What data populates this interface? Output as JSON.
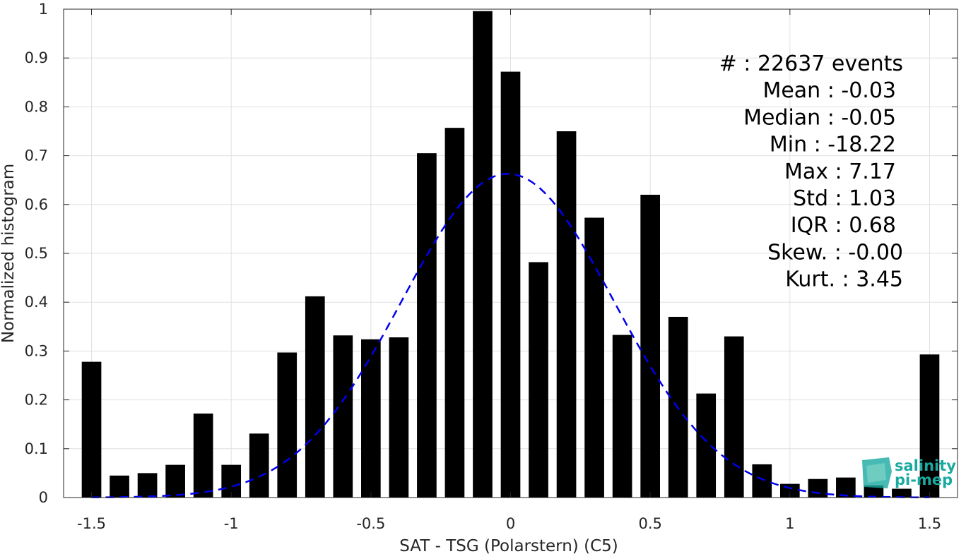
{
  "chart_data": {
    "type": "bar",
    "title": "",
    "xlabel": "SAT - TSG (Polarstern) (C5)",
    "ylabel": "Normalized histogram",
    "xlim": [
      -1.6,
      1.6
    ],
    "ylim": [
      0,
      1
    ],
    "grid": true,
    "x_ticks": [
      -1.5,
      -1,
      -0.5,
      0,
      0.5,
      1,
      1.5
    ],
    "x_tick_labels": [
      "-1.5",
      "-1",
      "-0.5",
      "0",
      "0.5",
      "1",
      "1.5"
    ],
    "y_ticks": [
      0,
      0.1,
      0.2,
      0.3,
      0.4,
      0.5,
      0.6,
      0.7,
      0.8,
      0.9,
      1
    ],
    "y_tick_labels": [
      "0",
      "0.1",
      "0.2",
      "0.3",
      "0.4",
      "0.5",
      "0.6",
      "0.7",
      "0.8",
      "0.9",
      "1"
    ],
    "bar_color": "#000000",
    "x": [
      -1.5,
      -1.4,
      -1.3,
      -1.2,
      -1.1,
      -1.0,
      -0.9,
      -0.8,
      -0.7,
      -0.6,
      -0.5,
      -0.4,
      -0.3,
      -0.2,
      -0.1,
      0.0,
      0.1,
      0.2,
      0.3,
      0.4,
      0.5,
      0.6,
      0.7,
      0.8,
      0.9,
      1.0,
      1.1,
      1.2,
      1.3,
      1.4,
      1.5
    ],
    "values": [
      0.278,
      0.045,
      0.05,
      0.067,
      0.172,
      0.067,
      0.131,
      0.297,
      0.412,
      0.332,
      0.324,
      0.328,
      0.705,
      0.757,
      0.996,
      0.872,
      0.482,
      0.75,
      0.573,
      0.333,
      0.62,
      0.37,
      0.213,
      0.33,
      0.068,
      0.028,
      0.038,
      0.041,
      0.025,
      0.018,
      0.293
    ],
    "fit_curve": {
      "style": "dashed",
      "color": "#0000ee",
      "mean": -0.01,
      "std": 0.38,
      "peak": 0.663,
      "x_range": [
        -1.5,
        1.5
      ]
    },
    "stats": [
      "#  : 22637 events",
      "Mean : -0.03",
      "Median : -0.05",
      "Min : -18.22",
      "Max : 7.17",
      "Std : 1.03",
      "IQR : 0.68",
      "Skew. : -0.00",
      "Kurt. : 3.45"
    ],
    "logo": {
      "line1": "salinity",
      "line2": "pi-mep",
      "color": "#19a9a0"
    }
  }
}
